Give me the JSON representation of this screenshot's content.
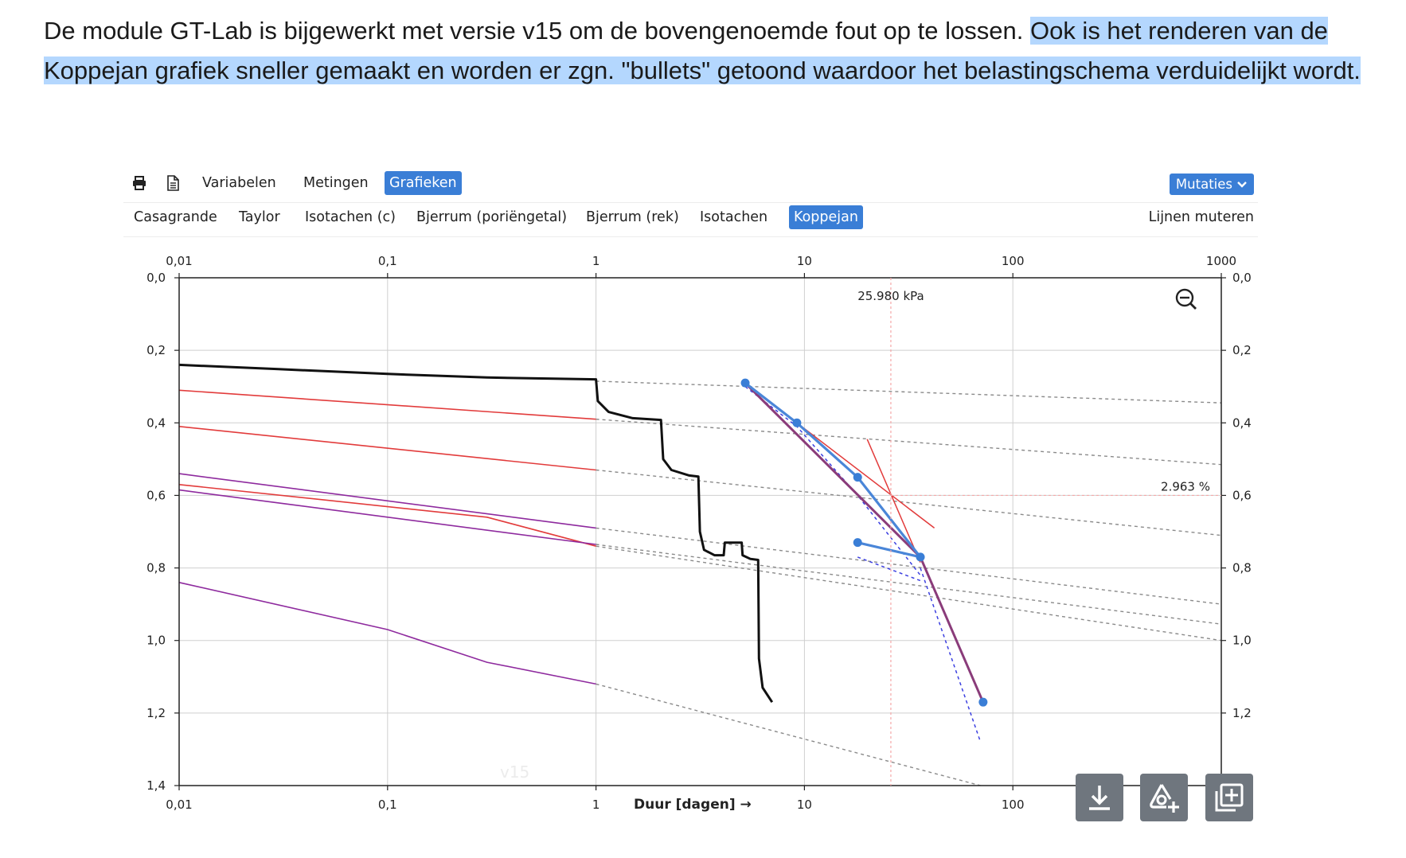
{
  "intro": {
    "part1": "De module GT-Lab is bijgewerkt met versie v15 om de bovengenoemde fout op te lossen. ",
    "part2": "Ook is het renderen van de Koppejan grafiek sneller gemaakt en worden er zgn. \"bullets\" getoond waardoor het belastingschema verduidelijkt wordt."
  },
  "toolbar": {
    "print_icon": "printer-icon",
    "doc_icon": "document-icon",
    "tabs": [
      {
        "label": "Variabelen",
        "active": false
      },
      {
        "label": "Metingen",
        "active": false
      },
      {
        "label": "Grafieken",
        "active": true
      }
    ],
    "mutaties_label": "Mutaties",
    "mutaties_icon": "chevron-down-icon"
  },
  "subtabs": {
    "items": [
      {
        "label": "Casagrande",
        "active": false
      },
      {
        "label": "Taylor",
        "active": false
      },
      {
        "label": "Isotachen (c)",
        "active": false
      },
      {
        "label": "Bjerrum (poriëngetal)",
        "active": false
      },
      {
        "label": "Bjerrum (rek)",
        "active": false
      },
      {
        "label": "Isotachen",
        "active": false
      },
      {
        "label": "Koppejan",
        "active": true
      }
    ],
    "right_label": "Lijnen muteren"
  },
  "chart_data": {
    "type": "line",
    "xlabel": "Duur [dagen] →",
    "xscale": "log",
    "xlim": [
      0.01,
      1000
    ],
    "ylim": [
      0,
      1.4
    ],
    "y_inverted": true,
    "x_ticks": [
      "0,01",
      "0,1",
      "1",
      "10",
      "100",
      "1000"
    ],
    "x_ticks_bottom": [
      "0,01",
      "0,1",
      "1",
      "10",
      "100"
    ],
    "y_ticks": [
      "0,0",
      "0,2",
      "0,4",
      "0,6",
      "0,8",
      "1,0",
      "1,2",
      "1,4"
    ],
    "grid": true,
    "watermark": "v15",
    "crosshair": {
      "x": 25.98,
      "y": 0.6,
      "x_label": "25.980 kPa",
      "y_label": "2.963 %"
    },
    "zoom_icon": "zoom-out-icon",
    "measured_curve": [
      [
        0.01,
        0.24
      ],
      [
        0.03,
        0.252
      ],
      [
        0.1,
        0.265
      ],
      [
        0.3,
        0.275
      ],
      [
        1,
        0.28
      ],
      [
        1.02,
        0.34
      ],
      [
        1.15,
        0.37
      ],
      [
        1.5,
        0.387
      ],
      [
        2.05,
        0.392
      ],
      [
        2.1,
        0.5
      ],
      [
        2.3,
        0.53
      ],
      [
        2.8,
        0.545
      ],
      [
        3.1,
        0.548
      ],
      [
        3.15,
        0.7
      ],
      [
        3.3,
        0.75
      ],
      [
        3.7,
        0.765
      ],
      [
        4.1,
        0.765
      ],
      [
        4.15,
        0.73
      ],
      [
        5,
        0.73
      ],
      [
        5.05,
        0.765
      ],
      [
        5.5,
        0.775
      ],
      [
        6,
        0.778
      ],
      [
        6.05,
        1.05
      ],
      [
        6.3,
        1.13
      ],
      [
        7,
        1.17
      ]
    ],
    "red_lines": [
      [
        [
          0.01,
          0.31
        ],
        [
          1,
          0.39
        ]
      ],
      [
        [
          0.01,
          0.41
        ],
        [
          1,
          0.53
        ]
      ],
      [
        [
          0.01,
          0.57
        ],
        [
          0.3,
          0.66
        ],
        [
          1,
          0.74
        ]
      ]
    ],
    "purple_lines": [
      [
        [
          0.01,
          0.54
        ],
        [
          1,
          0.69
        ]
      ],
      [
        [
          0.01,
          0.585
        ],
        [
          1,
          0.735
        ]
      ],
      [
        [
          0.01,
          0.84
        ],
        [
          0.1,
          0.97
        ],
        [
          0.3,
          1.06
        ],
        [
          1,
          1.12
        ]
      ]
    ],
    "grey_extensions": [
      [
        [
          1,
          0.285
        ],
        [
          1000,
          0.345
        ]
      ],
      [
        [
          1,
          0.39
        ],
        [
          1000,
          0.515
        ]
      ],
      [
        [
          1,
          0.53
        ],
        [
          1000,
          0.71
        ]
      ],
      [
        [
          1,
          0.69
        ],
        [
          1000,
          0.9
        ]
      ],
      [
        [
          1,
          0.735
        ],
        [
          1000,
          0.955
        ]
      ],
      [
        [
          1,
          0.74
        ],
        [
          1000,
          1.0
        ]
      ],
      [
        [
          1,
          1.12
        ],
        [
          70,
          1.4
        ]
      ]
    ],
    "koppejan_bullets": [
      [
        5.2,
        0.29
      ],
      [
        9.2,
        0.4
      ],
      [
        18,
        0.55
      ],
      [
        18,
        0.73
      ],
      [
        36,
        0.77
      ],
      [
        72,
        1.17
      ]
    ],
    "koppejan_lines": [
      [
        [
          5.2,
          0.29
        ],
        [
          9.2,
          0.4
        ],
        [
          18,
          0.55
        ],
        [
          36,
          0.77
        ]
      ],
      [
        [
          18,
          0.73
        ],
        [
          36,
          0.77
        ]
      ]
    ],
    "koppejan_fit": [
      [
        5.2,
        0.29
      ],
      [
        36,
        0.77
      ],
      [
        72,
        1.17
      ]
    ],
    "red_construction": [
      [
        [
          20,
          0.445
        ],
        [
          36,
          0.785
        ]
      ],
      [
        [
          9.2,
          0.4
        ],
        [
          42,
          0.69
        ]
      ]
    ],
    "blue_dashed": [
      [
        [
          5.2,
          0.3
        ],
        [
          9.2,
          0.41
        ],
        [
          18,
          0.6
        ],
        [
          36,
          0.82
        ]
      ],
      [
        [
          36,
          0.8
        ],
        [
          70,
          1.28
        ]
      ],
      [
        [
          18,
          0.77
        ],
        [
          36,
          0.835
        ]
      ]
    ]
  },
  "buttons": [
    {
      "name": "download-button",
      "icon": "download-icon"
    },
    {
      "name": "add-drawing-button",
      "icon": "shape-add-icon"
    },
    {
      "name": "add-chart-button",
      "icon": "plus-box-icon"
    }
  ]
}
